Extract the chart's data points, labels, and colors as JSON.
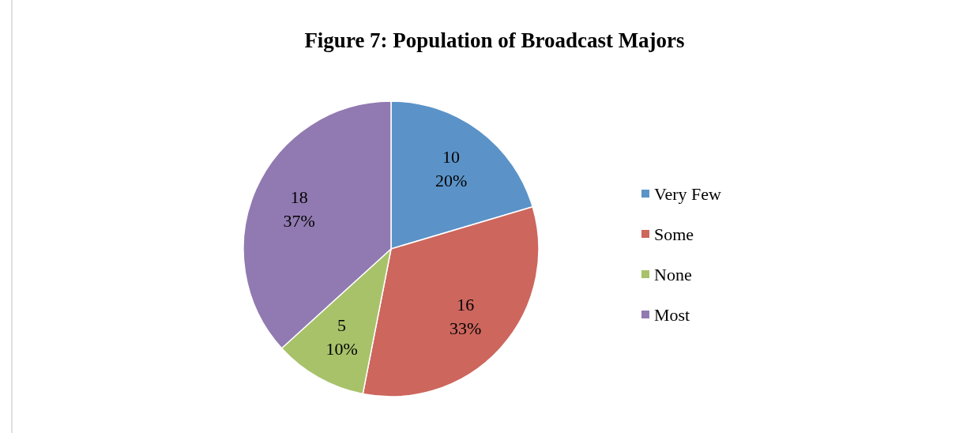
{
  "chart_data": {
    "type": "pie",
    "title": "Figure 7: Population of Broadcast Majors",
    "categories": [
      "Very Few",
      "Some",
      "None",
      "Most"
    ],
    "values": [
      10,
      16,
      5,
      18
    ],
    "colors": [
      "#5b93c8",
      "#cd665d",
      "#a8c26a",
      "#917ab1"
    ],
    "value_labels": [
      "10\n20%",
      "16\n33%",
      "5\n10%",
      "18\n37%"
    ],
    "legend": "right"
  }
}
